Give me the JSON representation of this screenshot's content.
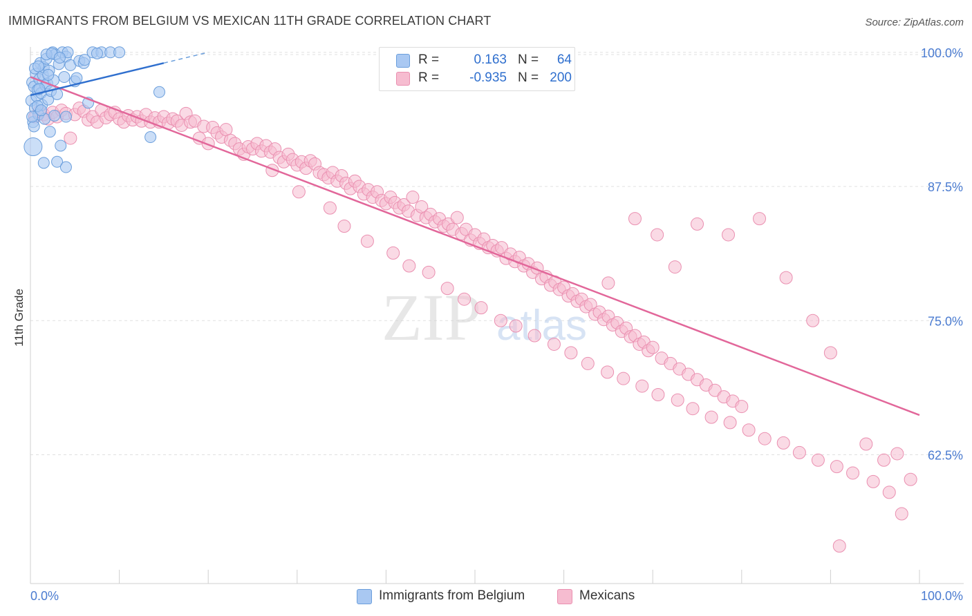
{
  "title": "IMMIGRANTS FROM BELGIUM VS MEXICAN 11TH GRADE CORRELATION CHART",
  "source": "Source: ZipAtlas.com",
  "watermark": {
    "zip": "ZIP",
    "atlas": "atlas"
  },
  "colors": {
    "blue_fill": "#a9c8f2",
    "blue_stroke": "#6a9edc",
    "blue_line": "#2f6fce",
    "pink_fill": "#f6bcd0",
    "pink_stroke": "#ea8fb0",
    "pink_line": "#e2679a",
    "axis_label": "#4a7bd0",
    "grid": "#e0e0e0"
  },
  "legend": {
    "blue": {
      "r_label": "R =",
      "r_value": "0.163",
      "n_label": "N =",
      "n_value": "64"
    },
    "pink": {
      "r_label": "R =",
      "r_value": "-0.935",
      "n_label": "N =",
      "n_value": "200"
    }
  },
  "bottom_legend": {
    "blue_label": "Immigrants from Belgium",
    "pink_label": "Mexicans"
  },
  "chart_data": {
    "type": "scatter",
    "title": "IMMIGRANTS FROM BELGIUM VS MEXICAN 11TH GRADE CORRELATION CHART",
    "xlabel": "",
    "ylabel": "11th Grade",
    "xlim": [
      0,
      100
    ],
    "ylim": [
      50.5,
      100.5
    ],
    "x_tick_labels": [
      "0.0%",
      "100.0%"
    ],
    "y_ticks": [
      {
        "value": 100.0,
        "label": "100.0%"
      },
      {
        "value": 87.5,
        "label": "87.5%"
      },
      {
        "value": 75.0,
        "label": "75.0%"
      },
      {
        "value": 62.5,
        "label": "62.5%"
      }
    ],
    "series": [
      {
        "name": "Immigrants from Belgium",
        "color": "#a9c8f2",
        "R": 0.163,
        "N": 64,
        "trend": {
          "x0": 0,
          "y0": 96.0,
          "x1": 15,
          "y1": 99.0,
          "dash_to_x": 20,
          "dash_to_y": 100.0
        },
        "points": [
          [
            0.1,
            95.5
          ],
          [
            0.2,
            97.2
          ],
          [
            0.3,
            93.5
          ],
          [
            0.4,
            96.8
          ],
          [
            0.5,
            94.8
          ],
          [
            0.6,
            98.0
          ],
          [
            0.7,
            95.9
          ],
          [
            0.8,
            96.5
          ],
          [
            0.9,
            94.2
          ],
          [
            1.0,
            97.5
          ],
          [
            1.1,
            99.0
          ],
          [
            1.2,
            96.2
          ],
          [
            1.3,
            95.1
          ],
          [
            1.4,
            97.9
          ],
          [
            1.5,
            98.6
          ],
          [
            1.6,
            93.8
          ],
          [
            1.7,
            96.9
          ],
          [
            1.8,
            99.4
          ],
          [
            1.9,
            97.1
          ],
          [
            2.0,
            95.6
          ],
          [
            2.1,
            98.3
          ],
          [
            2.2,
            92.6
          ],
          [
            2.3,
            96.4
          ],
          [
            2.5,
            100.0
          ],
          [
            2.6,
            97.4
          ],
          [
            2.8,
            99.8
          ],
          [
            3.0,
            96.1
          ],
          [
            3.2,
            98.9
          ],
          [
            3.4,
            91.3
          ],
          [
            3.6,
            100.0
          ],
          [
            3.8,
            97.7
          ],
          [
            4.0,
            99.6
          ],
          [
            4.2,
            100.0
          ],
          [
            4.5,
            98.8
          ],
          [
            5.0,
            97.3
          ],
          [
            5.5,
            99.2
          ],
          [
            6.0,
            99.0
          ],
          [
            6.5,
            95.3
          ],
          [
            7.0,
            100.0
          ],
          [
            8.0,
            100.0
          ],
          [
            9.0,
            100.0
          ],
          [
            10.0,
            100.0
          ],
          [
            0.3,
            91.2
          ],
          [
            1.5,
            89.7
          ],
          [
            3.0,
            89.8
          ],
          [
            4.0,
            89.3
          ],
          [
            0.5,
            98.5
          ],
          [
            2.0,
            97.9
          ],
          [
            7.5,
            99.9
          ],
          [
            0.8,
            95.0
          ],
          [
            1.2,
            94.6
          ],
          [
            0.4,
            93.1
          ],
          [
            14.5,
            96.3
          ],
          [
            0.9,
            98.7
          ],
          [
            1.8,
            99.8
          ],
          [
            2.4,
            99.9
          ],
          [
            3.3,
            99.5
          ],
          [
            0.2,
            94.0
          ],
          [
            1.0,
            96.6
          ],
          [
            2.7,
            94.1
          ],
          [
            5.2,
            97.6
          ],
          [
            6.1,
            99.3
          ],
          [
            13.5,
            92.1
          ],
          [
            4.0,
            94.0
          ]
        ]
      },
      {
        "name": "Mexicans",
        "color": "#f6bcd0",
        "R": -0.935,
        "N": 200,
        "trend": {
          "x0": 0,
          "y0": 97.7,
          "x1": 100,
          "y1": 66.2
        },
        "points": [
          [
            0.5,
            94.0
          ],
          [
            1.0,
            94.5
          ],
          [
            1.5,
            94.2
          ],
          [
            2.0,
            93.8
          ],
          [
            2.5,
            94.4
          ],
          [
            3.0,
            94.0
          ],
          [
            3.5,
            94.6
          ],
          [
            4.0,
            94.3
          ],
          [
            4.5,
            92.0
          ],
          [
            5.0,
            94.2
          ],
          [
            5.5,
            94.8
          ],
          [
            6.0,
            94.5
          ],
          [
            6.5,
            93.7
          ],
          [
            7.0,
            94.0
          ],
          [
            7.5,
            93.5
          ],
          [
            8.0,
            94.6
          ],
          [
            8.5,
            93.9
          ],
          [
            9.0,
            94.2
          ],
          [
            9.5,
            94.4
          ],
          [
            10.0,
            93.8
          ],
          [
            10.5,
            93.5
          ],
          [
            11.0,
            94.1
          ],
          [
            11.5,
            93.7
          ],
          [
            12.0,
            94.0
          ],
          [
            12.5,
            93.6
          ],
          [
            13.0,
            94.2
          ],
          [
            13.5,
            93.5
          ],
          [
            14.0,
            93.9
          ],
          [
            14.5,
            93.5
          ],
          [
            15.0,
            94.0
          ],
          [
            15.5,
            93.4
          ],
          [
            16.0,
            93.8
          ],
          [
            16.5,
            93.6
          ],
          [
            17.0,
            93.2
          ],
          [
            17.5,
            94.3
          ],
          [
            18.0,
            93.5
          ],
          [
            18.5,
            93.6
          ],
          [
            19.0,
            92.0
          ],
          [
            19.5,
            93.1
          ],
          [
            20.0,
            91.5
          ],
          [
            20.5,
            93.0
          ],
          [
            21.0,
            92.5
          ],
          [
            21.5,
            92.1
          ],
          [
            22.0,
            92.8
          ],
          [
            22.5,
            91.8
          ],
          [
            23.0,
            91.5
          ],
          [
            23.5,
            91.0
          ],
          [
            24.0,
            90.5
          ],
          [
            24.5,
            91.2
          ],
          [
            25.0,
            91.0
          ],
          [
            25.5,
            91.5
          ],
          [
            26.0,
            90.8
          ],
          [
            26.5,
            91.3
          ],
          [
            27.0,
            90.7
          ],
          [
            27.5,
            91.0
          ],
          [
            28.0,
            90.2
          ],
          [
            28.5,
            89.8
          ],
          [
            29.0,
            90.5
          ],
          [
            29.5,
            90.0
          ],
          [
            30.0,
            89.5
          ],
          [
            30.5,
            89.8
          ],
          [
            31.0,
            89.2
          ],
          [
            31.5,
            89.9
          ],
          [
            32.0,
            89.6
          ],
          [
            32.5,
            88.8
          ],
          [
            33.0,
            88.6
          ],
          [
            33.5,
            88.3
          ],
          [
            34.0,
            88.8
          ],
          [
            34.5,
            88.0
          ],
          [
            35.0,
            88.5
          ],
          [
            35.5,
            87.8
          ],
          [
            36.0,
            87.3
          ],
          [
            36.5,
            88.0
          ],
          [
            37.0,
            87.5
          ],
          [
            37.5,
            86.8
          ],
          [
            38.0,
            87.2
          ],
          [
            38.5,
            86.5
          ],
          [
            39.0,
            87.0
          ],
          [
            39.5,
            86.2
          ],
          [
            40.0,
            85.9
          ],
          [
            40.5,
            86.5
          ],
          [
            41.0,
            86.0
          ],
          [
            41.5,
            85.5
          ],
          [
            42.0,
            85.8
          ],
          [
            42.5,
            85.2
          ],
          [
            43.0,
            86.5
          ],
          [
            43.5,
            84.8
          ],
          [
            44.0,
            85.6
          ],
          [
            44.5,
            84.6
          ],
          [
            45.0,
            84.9
          ],
          [
            45.5,
            84.2
          ],
          [
            46.0,
            84.5
          ],
          [
            46.5,
            83.8
          ],
          [
            47.0,
            84.0
          ],
          [
            47.5,
            83.5
          ],
          [
            48.0,
            84.6
          ],
          [
            48.5,
            83.1
          ],
          [
            49.0,
            83.5
          ],
          [
            49.5,
            82.5
          ],
          [
            50.0,
            83.0
          ],
          [
            50.5,
            82.2
          ],
          [
            51.0,
            82.6
          ],
          [
            51.5,
            81.8
          ],
          [
            52.0,
            82.0
          ],
          [
            52.5,
            81.5
          ],
          [
            53.0,
            81.8
          ],
          [
            53.5,
            80.8
          ],
          [
            54.0,
            81.2
          ],
          [
            54.5,
            80.5
          ],
          [
            55.0,
            80.9
          ],
          [
            55.5,
            80.1
          ],
          [
            56.0,
            80.3
          ],
          [
            56.5,
            79.5
          ],
          [
            57.0,
            79.9
          ],
          [
            57.5,
            78.9
          ],
          [
            58.0,
            79.1
          ],
          [
            58.5,
            78.3
          ],
          [
            59.0,
            78.6
          ],
          [
            59.5,
            77.9
          ],
          [
            60.0,
            78.1
          ],
          [
            60.5,
            77.3
          ],
          [
            61.0,
            77.5
          ],
          [
            61.5,
            76.8
          ],
          [
            62.0,
            77.0
          ],
          [
            62.5,
            76.3
          ],
          [
            63.0,
            76.5
          ],
          [
            63.5,
            75.6
          ],
          [
            64.0,
            75.8
          ],
          [
            64.5,
            75.1
          ],
          [
            65.0,
            75.4
          ],
          [
            65.5,
            74.6
          ],
          [
            66.0,
            74.8
          ],
          [
            66.5,
            74.0
          ],
          [
            67.0,
            74.3
          ],
          [
            67.5,
            73.5
          ],
          [
            68.0,
            73.6
          ],
          [
            68.5,
            72.8
          ],
          [
            69.0,
            73.0
          ],
          [
            69.5,
            72.2
          ],
          [
            70.0,
            72.5
          ],
          [
            71.0,
            71.5
          ],
          [
            72.0,
            71.0
          ],
          [
            73.0,
            70.5
          ],
          [
            74.0,
            70.0
          ],
          [
            75.0,
            69.5
          ],
          [
            76.0,
            69.0
          ],
          [
            77.0,
            68.5
          ],
          [
            78.0,
            67.9
          ],
          [
            79.0,
            67.5
          ],
          [
            80.0,
            67.0
          ],
          [
            27.2,
            89.0
          ],
          [
            30.2,
            87.0
          ],
          [
            33.7,
            85.5
          ],
          [
            35.3,
            83.8
          ],
          [
            37.9,
            82.4
          ],
          [
            40.8,
            81.3
          ],
          [
            42.6,
            80.1
          ],
          [
            44.8,
            79.5
          ],
          [
            46.9,
            78.0
          ],
          [
            48.8,
            77.0
          ],
          [
            50.7,
            76.2
          ],
          [
            52.9,
            75.0
          ],
          [
            54.6,
            74.5
          ],
          [
            56.7,
            73.6
          ],
          [
            58.9,
            72.8
          ],
          [
            60.8,
            72.0
          ],
          [
            62.7,
            71.0
          ],
          [
            64.9,
            70.2
          ],
          [
            66.7,
            69.6
          ],
          [
            68.8,
            68.9
          ],
          [
            70.6,
            68.1
          ],
          [
            72.8,
            67.6
          ],
          [
            74.5,
            66.8
          ],
          [
            76.6,
            66.0
          ],
          [
            78.7,
            65.5
          ],
          [
            80.8,
            64.8
          ],
          [
            82.6,
            64.0
          ],
          [
            84.7,
            63.6
          ],
          [
            86.5,
            62.7
          ],
          [
            88.6,
            62.0
          ],
          [
            90.7,
            61.4
          ],
          [
            92.5,
            60.8
          ],
          [
            94.8,
            60.0
          ],
          [
            96.6,
            59.0
          ],
          [
            98.0,
            57.0
          ],
          [
            99.0,
            60.2
          ],
          [
            91.0,
            54.0
          ],
          [
            94.0,
            63.5
          ],
          [
            96.0,
            62.0
          ],
          [
            97.5,
            62.6
          ],
          [
            82.0,
            84.5
          ],
          [
            75.0,
            84.0
          ],
          [
            78.5,
            83.0
          ],
          [
            68.0,
            84.5
          ],
          [
            70.5,
            83.0
          ],
          [
            65.0,
            78.5
          ],
          [
            72.5,
            80.0
          ],
          [
            85.0,
            79.0
          ],
          [
            88.0,
            75.0
          ],
          [
            90.0,
            72.0
          ]
        ]
      }
    ]
  }
}
